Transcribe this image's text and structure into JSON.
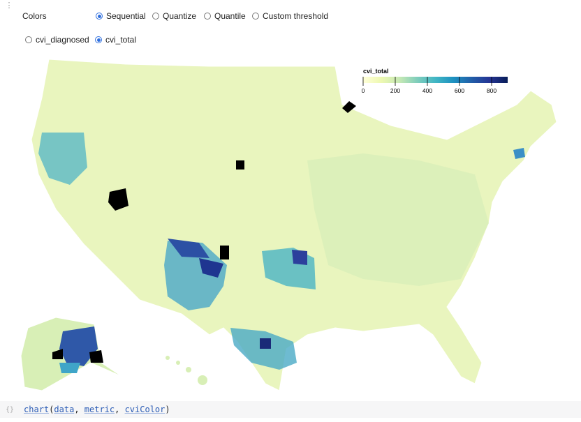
{
  "controls": {
    "colors": {
      "label": "Colors",
      "options": [
        "Sequential",
        "Quantize",
        "Quantile",
        "Custom threshold"
      ],
      "selected": 0
    },
    "metric": {
      "options": [
        "cvi_diagnosed",
        "cvi_total"
      ],
      "selected": 1
    }
  },
  "legend": {
    "title": "cvi_total",
    "lim": [
      0,
      900
    ],
    "ticks": [
      0,
      200,
      400,
      600,
      800
    ]
  },
  "code": {
    "tokens": [
      "chart",
      "(",
      "data",
      ", ",
      "metric",
      ", ",
      "cviColor",
      ")"
    ]
  }
}
